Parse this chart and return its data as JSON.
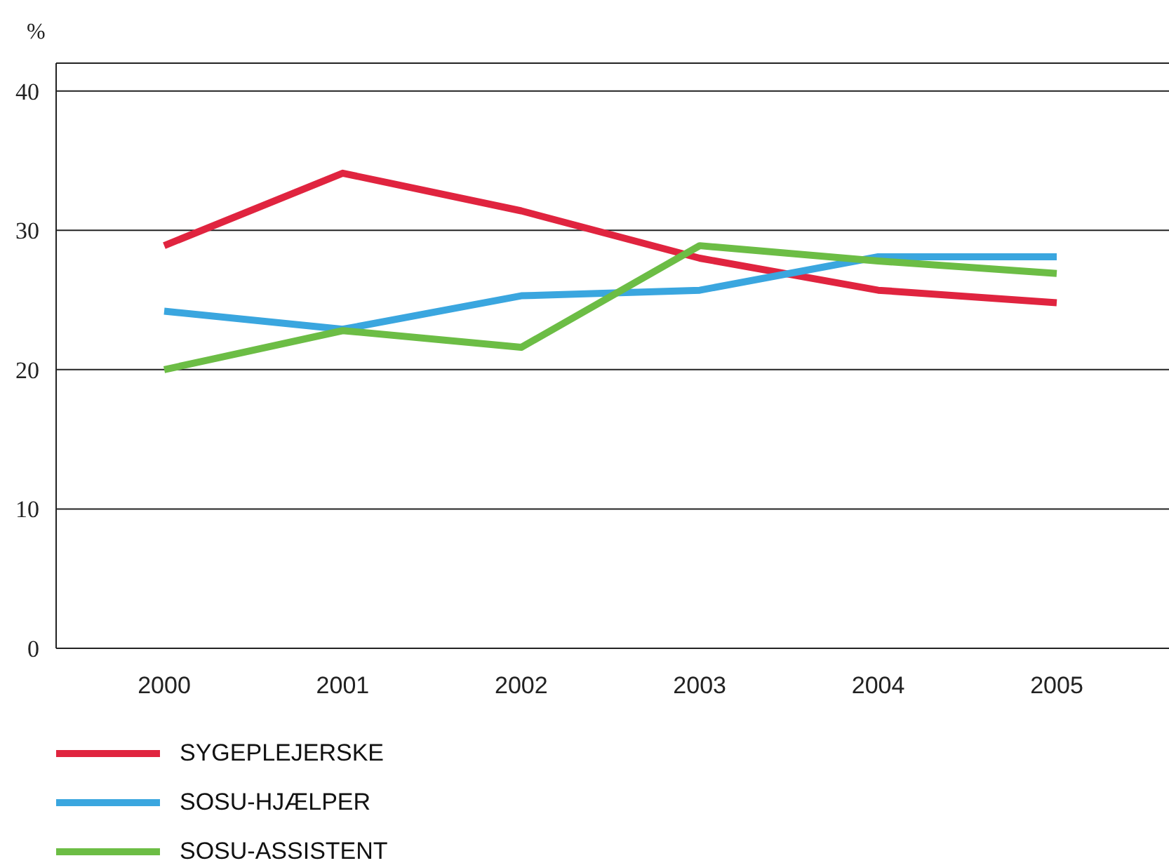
{
  "chart_data": {
    "type": "line",
    "ylabel": "%",
    "categories": [
      "2000",
      "2001",
      "2002",
      "2003",
      "2004",
      "2005"
    ],
    "series": [
      {
        "name": "SYGEPLEJERSKE",
        "color": "#e0243f",
        "values": [
          28.9,
          34.1,
          31.4,
          28.0,
          25.7,
          24.8
        ]
      },
      {
        "name": "SOSU-HJÆLPER",
        "color": "#3aa6df",
        "values": [
          24.2,
          22.9,
          25.3,
          25.7,
          28.1,
          28.1
        ]
      },
      {
        "name": "SOSU-ASSISTENT",
        "color": "#6cbd45",
        "values": [
          20.0,
          22.8,
          21.6,
          28.9,
          27.8,
          26.9
        ]
      }
    ],
    "ylim": [
      0,
      42
    ],
    "yticks": [
      0,
      10,
      20,
      30,
      40
    ],
    "grid": "y",
    "legend": "bottom",
    "marker": "none",
    "line_style": "solid"
  }
}
